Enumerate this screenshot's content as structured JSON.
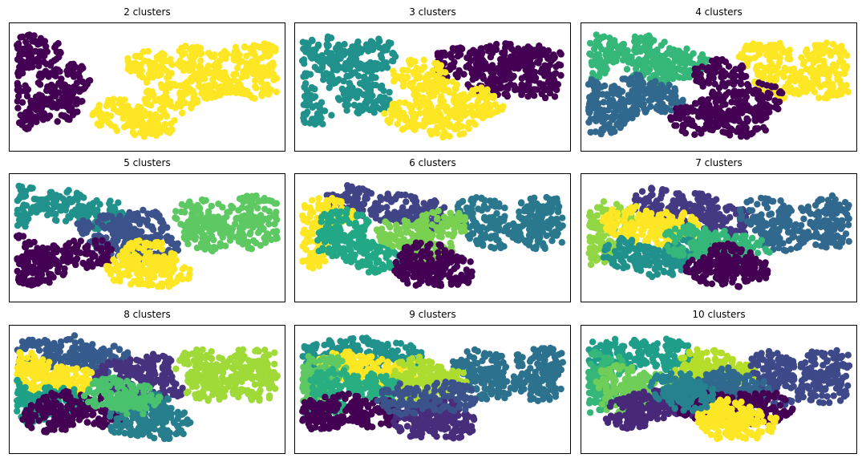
{
  "chart_data": [
    {
      "type": "scatter",
      "title": "2 clusters",
      "n_clusters": 2,
      "axes": "off",
      "colors": [
        "#440154",
        "#fde725"
      ],
      "regions": [
        {
          "cluster": 0,
          "extent": "left half",
          "blobs": [
            [
              -1.6,
              0.6
            ],
            [
              -1.7,
              -0.2
            ],
            [
              -1.3,
              0.9
            ],
            [
              -0.9,
              0.2
            ],
            [
              -1.5,
              -0.7
            ],
            [
              -1.0,
              -0.5
            ]
          ]
        },
        {
          "cluster": 1,
          "extent": "right half",
          "blobs": [
            [
              0.2,
              0.5
            ],
            [
              0.9,
              0.7
            ],
            [
              1.6,
              0.7
            ],
            [
              1.6,
              0.1
            ],
            [
              0.5,
              -0.3
            ],
            [
              1.0,
              0.1
            ],
            [
              -0.2,
              -0.7
            ],
            [
              0.2,
              -0.9
            ]
          ]
        }
      ]
    },
    {
      "type": "scatter",
      "title": "3 clusters",
      "n_clusters": 3,
      "axes": "off",
      "colors": [
        "#440154",
        "#21918c",
        "#fde725"
      ],
      "regions": [
        {
          "cluster": 1,
          "blobs": [
            [
              -1.6,
              0.6
            ],
            [
              -1.7,
              -0.2
            ],
            [
              -1.3,
              0.9
            ],
            [
              -0.9,
              0.2
            ],
            [
              -1.5,
              -0.7
            ],
            [
              -0.7,
              -0.3
            ],
            [
              -0.6,
              0.8
            ]
          ]
        },
        {
          "cluster": 0,
          "blobs": [
            [
              0.5,
              0.6
            ],
            [
              1.1,
              0.7
            ],
            [
              1.6,
              0.65
            ],
            [
              1.6,
              0.05
            ],
            [
              1.0,
              0.1
            ]
          ]
        },
        {
          "cluster": 2,
          "blobs": [
            [
              0.0,
              0.3
            ],
            [
              0.3,
              -0.2
            ],
            [
              -0.1,
              -0.7
            ],
            [
              0.4,
              -0.9
            ],
            [
              0.8,
              -0.4
            ]
          ]
        }
      ]
    },
    {
      "type": "scatter",
      "title": "4 clusters",
      "n_clusters": 4,
      "axes": "off",
      "colors": [
        "#440154",
        "#31688e",
        "#35b779",
        "#fde725"
      ],
      "regions": [
        {
          "cluster": 2,
          "blobs": [
            [
              -1.4,
              0.9
            ],
            [
              -0.8,
              0.9
            ],
            [
              -0.3,
              0.6
            ],
            [
              -1.6,
              0.5
            ],
            [
              -0.7,
              0.35
            ]
          ]
        },
        {
          "cluster": 1,
          "blobs": [
            [
              -1.6,
              -0.2
            ],
            [
              -1.2,
              -0.5
            ],
            [
              -0.6,
              -0.3
            ],
            [
              -1.4,
              -0.8
            ],
            [
              -0.9,
              -0.1
            ]
          ]
        },
        {
          "cluster": 3,
          "blobs": [
            [
              0.8,
              0.75
            ],
            [
              1.6,
              0.7
            ],
            [
              1.6,
              0.1
            ],
            [
              1.0,
              0.1
            ]
          ]
        },
        {
          "cluster": 0,
          "blobs": [
            [
              0.2,
              0.3
            ],
            [
              0.2,
              -0.5
            ],
            [
              0.5,
              -0.9
            ],
            [
              -0.1,
              -0.8
            ],
            [
              0.7,
              -0.3
            ]
          ]
        }
      ]
    },
    {
      "type": "scatter",
      "title": "5 clusters",
      "n_clusters": 5,
      "axes": "off",
      "colors": [
        "#440154",
        "#3b528b",
        "#21918c",
        "#5ec962",
        "#fde725"
      ],
      "regions": [
        {
          "cluster": 2,
          "blobs": [
            [
              -1.5,
              0.9
            ],
            [
              -0.9,
              0.8
            ],
            [
              -1.7,
              0.4
            ],
            [
              -0.4,
              0.6
            ]
          ]
        },
        {
          "cluster": 1,
          "blobs": [
            [
              -0.4,
              0.2
            ],
            [
              0.1,
              0.3
            ],
            [
              -0.2,
              -0.1
            ],
            [
              0.3,
              -0.3
            ]
          ]
        },
        {
          "cluster": 3,
          "blobs": [
            [
              0.9,
              0.55
            ],
            [
              1.6,
              0.65
            ],
            [
              1.6,
              0.1
            ],
            [
              1.0,
              0.05
            ]
          ]
        },
        {
          "cluster": 0,
          "blobs": [
            [
              -1.6,
              -0.3
            ],
            [
              -1.1,
              -0.6
            ],
            [
              -0.6,
              -0.4
            ],
            [
              -1.3,
              -0.8
            ]
          ]
        },
        {
          "cluster": 4,
          "blobs": [
            [
              0.0,
              -0.8
            ],
            [
              0.4,
              -0.9
            ],
            [
              0.2,
              -0.45
            ]
          ]
        }
      ]
    },
    {
      "type": "scatter",
      "title": "6 clusters",
      "n_clusters": 6,
      "axes": "off",
      "colors": [
        "#440154",
        "#414487",
        "#2a788e",
        "#22a884",
        "#7ad151",
        "#fde725"
      ],
      "regions": [
        {
          "cluster": 1,
          "blobs": [
            [
              -0.9,
              0.9
            ],
            [
              -0.3,
              0.75
            ],
            [
              0.1,
              0.55
            ]
          ]
        },
        {
          "cluster": 2,
          "blobs": [
            [
              0.8,
              0.6
            ],
            [
              1.6,
              0.65
            ],
            [
              1.6,
              0.1
            ],
            [
              1.0,
              0.1
            ]
          ]
        },
        {
          "cluster": 5,
          "blobs": [
            [
              -1.7,
              0.2
            ],
            [
              -1.5,
              -0.4
            ],
            [
              -1.2,
              0.6
            ]
          ]
        },
        {
          "cluster": 3,
          "blobs": [
            [
              -1.0,
              -0.2
            ],
            [
              -0.6,
              -0.5
            ],
            [
              -1.0,
              0.3
            ]
          ]
        },
        {
          "cluster": 4,
          "blobs": [
            [
              -0.2,
              0.1
            ],
            [
              0.3,
              0.3
            ],
            [
              0.1,
              -0.3
            ]
          ]
        },
        {
          "cluster": 0,
          "blobs": [
            [
              0.0,
              -0.8
            ],
            [
              0.4,
              -0.85
            ],
            [
              0.1,
              -0.5
            ]
          ]
        }
      ]
    },
    {
      "type": "scatter",
      "title": "7 clusters",
      "n_clusters": 7,
      "axes": "off",
      "colors": [
        "#440154",
        "#443983",
        "#31688e",
        "#21918c",
        "#35b779",
        "#90d743",
        "#fde725"
      ],
      "regions": [
        {
          "cluster": 1,
          "blobs": [
            [
              -0.6,
              0.85
            ],
            [
              -0.1,
              0.7
            ],
            [
              0.3,
              0.4
            ]
          ]
        },
        {
          "cluster": 2,
          "blobs": [
            [
              0.8,
              0.6
            ],
            [
              1.6,
              0.65
            ],
            [
              1.6,
              0.1
            ],
            [
              1.0,
              0.05
            ]
          ]
        },
        {
          "cluster": 5,
          "blobs": [
            [
              -1.7,
              0.2
            ],
            [
              -1.5,
              -0.3
            ],
            [
              -1.3,
              0.5
            ]
          ]
        },
        {
          "cluster": 6,
          "blobs": [
            [
              -1.0,
              0.4
            ],
            [
              -0.7,
              0.1
            ],
            [
              -0.4,
              0.3
            ]
          ]
        },
        {
          "cluster": 3,
          "blobs": [
            [
              -1.0,
              -0.4
            ],
            [
              -0.6,
              -0.6
            ],
            [
              -0.2,
              -0.4
            ]
          ]
        },
        {
          "cluster": 4,
          "blobs": [
            [
              0.2,
              -0.2
            ],
            [
              0.5,
              -0.35
            ],
            [
              -0.2,
              -0.1
            ]
          ]
        },
        {
          "cluster": 0,
          "blobs": [
            [
              0.1,
              -0.8
            ],
            [
              0.5,
              -0.85
            ],
            [
              0.3,
              -0.55
            ]
          ]
        }
      ]
    },
    {
      "type": "scatter",
      "title": "8 clusters",
      "n_clusters": 8,
      "axes": "off",
      "colors": [
        "#440154",
        "#46327e",
        "#365c8d",
        "#277f8e",
        "#1fa187",
        "#4ac16d",
        "#a0da39",
        "#fde725"
      ],
      "regions": [
        {
          "cluster": 2,
          "blobs": [
            [
              -1.3,
              0.85
            ],
            [
              -0.8,
              0.95
            ],
            [
              -0.4,
              0.75
            ]
          ]
        },
        {
          "cluster": 1,
          "blobs": [
            [
              -0.2,
              0.3
            ],
            [
              0.2,
              0.5
            ],
            [
              0.3,
              0.0
            ]
          ]
        },
        {
          "cluster": 6,
          "blobs": [
            [
              0.9,
              0.6
            ],
            [
              1.6,
              0.65
            ],
            [
              1.6,
              0.1
            ],
            [
              1.0,
              0.1
            ]
          ]
        },
        {
          "cluster": 7,
          "blobs": [
            [
              -1.2,
              0.3
            ],
            [
              -0.8,
              0.15
            ],
            [
              -1.5,
              0.55
            ]
          ]
        },
        {
          "cluster": 4,
          "blobs": [
            [
              -1.7,
              -0.1
            ],
            [
              -1.4,
              -0.5
            ],
            [
              -1.0,
              -0.3
            ]
          ]
        },
        {
          "cluster": 0,
          "blobs": [
            [
              -0.9,
              -0.45
            ],
            [
              -0.4,
              -0.55
            ],
            [
              -1.1,
              -0.7
            ]
          ]
        },
        {
          "cluster": 3,
          "blobs": [
            [
              0.0,
              -0.8
            ],
            [
              0.4,
              -0.85
            ],
            [
              0.2,
              -0.5
            ]
          ]
        },
        {
          "cluster": 5,
          "blobs": [
            [
              -0.3,
              -0.1
            ],
            [
              0.0,
              -0.25
            ]
          ]
        }
      ]
    },
    {
      "type": "scatter",
      "title": "9 clusters",
      "n_clusters": 9,
      "axes": "off",
      "colors": [
        "#440154",
        "#472d7b",
        "#3b528b",
        "#2c728e",
        "#21918c",
        "#28ae80",
        "#5ec962",
        "#addc30",
        "#fde725"
      ],
      "regions": [
        {
          "cluster": 4,
          "blobs": [
            [
              -0.8,
              0.9
            ],
            [
              -0.3,
              0.8
            ],
            [
              -1.2,
              0.85
            ]
          ]
        },
        {
          "cluster": 3,
          "blobs": [
            [
              0.8,
              0.6
            ],
            [
              1.6,
              0.65
            ],
            [
              1.6,
              0.1
            ],
            [
              1.0,
              0.1
            ]
          ]
        },
        {
          "cluster": 8,
          "blobs": [
            [
              -0.7,
              0.45
            ],
            [
              -0.3,
              0.35
            ],
            [
              -1.0,
              0.55
            ]
          ]
        },
        {
          "cluster": 7,
          "blobs": [
            [
              0.0,
              0.4
            ],
            [
              0.3,
              0.2
            ],
            [
              -0.1,
              0.0
            ]
          ]
        },
        {
          "cluster": 6,
          "blobs": [
            [
              -1.6,
              0.25
            ],
            [
              -1.3,
              0.5
            ],
            [
              -1.5,
              -0.1
            ]
          ]
        },
        {
          "cluster": 5,
          "blobs": [
            [
              -1.1,
              0.1
            ],
            [
              -0.6,
              0.0
            ],
            [
              -1.3,
              -0.3
            ]
          ]
        },
        {
          "cluster": 0,
          "blobs": [
            [
              -1.0,
              -0.5
            ],
            [
              -0.6,
              -0.6
            ],
            [
              -1.3,
              -0.65
            ]
          ]
        },
        {
          "cluster": 1,
          "blobs": [
            [
              0.0,
              -0.8
            ],
            [
              0.4,
              -0.85
            ],
            [
              0.2,
              -0.55
            ]
          ]
        },
        {
          "cluster": 2,
          "blobs": [
            [
              -0.2,
              -0.25
            ],
            [
              0.4,
              -0.2
            ]
          ]
        }
      ]
    },
    {
      "type": "scatter",
      "title": "10 clusters",
      "n_clusters": 10,
      "axes": "off",
      "colors": [
        "#440154",
        "#482878",
        "#3e4989",
        "#31688e",
        "#26828e",
        "#1f9e89",
        "#35b779",
        "#6ece58",
        "#b5de2b",
        "#fde725"
      ],
      "regions": [
        {
          "cluster": 5,
          "blobs": [
            [
              -1.0,
              0.9
            ],
            [
              -0.5,
              0.85
            ],
            [
              -1.4,
              0.8
            ]
          ]
        },
        {
          "cluster": 8,
          "blobs": [
            [
              0.0,
              0.6
            ],
            [
              0.35,
              0.35
            ],
            [
              -0.1,
              0.3
            ]
          ]
        },
        {
          "cluster": 2,
          "blobs": [
            [
              0.9,
              0.55
            ],
            [
              1.6,
              0.6
            ],
            [
              1.6,
              0.05
            ],
            [
              1.0,
              0.0
            ]
          ]
        },
        {
          "cluster": 6,
          "blobs": [
            [
              -1.6,
              0.2
            ],
            [
              -1.4,
              0.55
            ],
            [
              -1.5,
              -0.2
            ]
          ]
        },
        {
          "cluster": 7,
          "blobs": [
            [
              -1.1,
              0.2
            ],
            [
              -0.7,
              0.0
            ],
            [
              -1.0,
              -0.3
            ]
          ]
        },
        {
          "cluster": 1,
          "blobs": [
            [
              -0.7,
              -0.4
            ],
            [
              -0.3,
              -0.3
            ],
            [
              -1.0,
              -0.6
            ]
          ]
        },
        {
          "cluster": 3,
          "blobs": [
            [
              0.1,
              -0.1
            ],
            [
              0.5,
              -0.05
            ],
            [
              0.3,
              0.15
            ]
          ]
        },
        {
          "cluster": 0,
          "blobs": [
            [
              0.0,
              -0.45
            ],
            [
              0.5,
              -0.5
            ],
            [
              0.8,
              -0.45
            ]
          ]
        },
        {
          "cluster": 9,
          "blobs": [
            [
              0.2,
              -0.85
            ],
            [
              0.6,
              -0.85
            ],
            [
              0.3,
              -0.65
            ]
          ]
        },
        {
          "cluster": 4,
          "blobs": [
            [
              -0.4,
              0.05
            ],
            [
              -0.2,
              -0.15
            ]
          ]
        }
      ]
    }
  ]
}
